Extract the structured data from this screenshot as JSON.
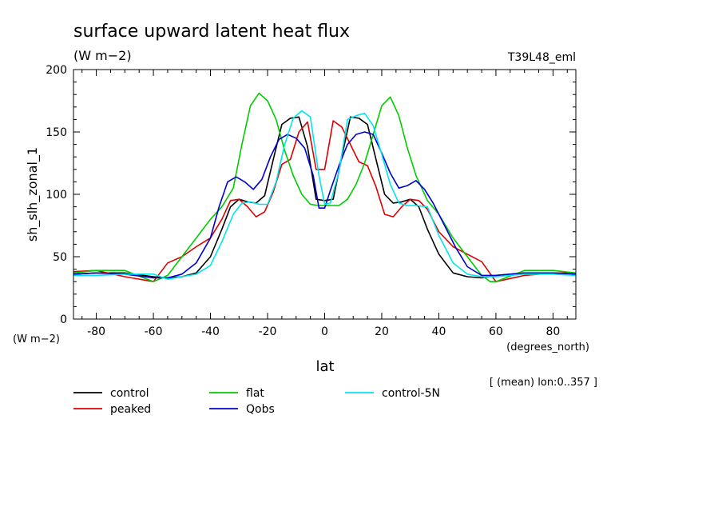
{
  "chart_data": {
    "type": "line",
    "title": "surface upward latent heat flux",
    "subtitle": "(W m−2)",
    "run_label": "T39L48_eml",
    "ylabel": "sh_slh_zonal_1",
    "yunit": "(W m−2)",
    "xlabel": "lat",
    "xunit": "(degrees_north)",
    "footnote": "[ (mean) lon:0..357 ]",
    "xlim": [
      -88,
      88
    ],
    "ylim": [
      0,
      200
    ],
    "x_ticks": [
      -80,
      -60,
      -40,
      -20,
      0,
      20,
      40,
      60,
      80
    ],
    "y_ticks": [
      0,
      50,
      100,
      150,
      200
    ],
    "grid": false,
    "legend_position": "bottom",
    "series": [
      {
        "name": "control",
        "color": "#000000",
        "x": [
          -88,
          -80,
          -70,
          -60,
          -55,
          -50,
          -45,
          -40,
          -36,
          -33,
          -30,
          -27,
          -24,
          -21,
          -18,
          -15,
          -12,
          -9,
          -6,
          -3,
          0,
          3,
          6,
          9,
          12,
          15,
          18,
          21,
          24,
          27,
          30,
          33,
          36,
          40,
          45,
          50,
          55,
          60,
          70,
          80,
          88
        ],
        "y": [
          36,
          37,
          37,
          34,
          33,
          34,
          37,
          50,
          72,
          90,
          96,
          94,
          93,
          99,
          128,
          156,
          161,
          162,
          138,
          96,
          95,
          96,
          130,
          162,
          161,
          156,
          128,
          100,
          93,
          94,
          96,
          90,
          72,
          52,
          37,
          34,
          33,
          35,
          37,
          37,
          36
        ]
      },
      {
        "name": "peaked",
        "color": "#dd0000",
        "x": [
          -88,
          -80,
          -70,
          -60,
          -55,
          -50,
          -45,
          -40,
          -36,
          -33,
          -30,
          -27,
          -24,
          -21,
          -18,
          -15,
          -12,
          -9,
          -6,
          -3,
          0,
          3,
          6,
          9,
          12,
          15,
          18,
          21,
          24,
          27,
          30,
          33,
          36,
          40,
          45,
          50,
          55,
          60,
          70,
          80,
          88
        ],
        "y": [
          38,
          39,
          34,
          30,
          45,
          50,
          58,
          65,
          80,
          95,
          96,
          90,
          82,
          86,
          102,
          124,
          128,
          150,
          158,
          120,
          120,
          159,
          154,
          140,
          126,
          123,
          106,
          84,
          82,
          90,
          96,
          95,
          88,
          70,
          58,
          52,
          46,
          30,
          35,
          37,
          37
        ]
      },
      {
        "name": "flat",
        "color": "#00cc00",
        "x": [
          -88,
          -80,
          -70,
          -60,
          -55,
          -50,
          -45,
          -40,
          -36,
          -32,
          -29,
          -26,
          -23,
          -20,
          -17,
          -14,
          -11,
          -8,
          -5,
          -2,
          0,
          2,
          5,
          8,
          11,
          14,
          17,
          20,
          23,
          26,
          29,
          32,
          36,
          40,
          45,
          50,
          55,
          58,
          60,
          70,
          80,
          88
        ],
        "y": [
          37,
          39,
          39,
          30,
          35,
          50,
          65,
          80,
          90,
          105,
          140,
          171,
          181,
          175,
          160,
          135,
          115,
          100,
          92,
          91,
          91,
          91,
          91,
          96,
          108,
          125,
          148,
          171,
          178,
          163,
          137,
          115,
          95,
          84,
          65,
          50,
          35,
          30,
          30,
          39,
          39,
          37
        ]
      },
      {
        "name": "Qobs",
        "color": "#0000cc",
        "x": [
          -88,
          -80,
          -70,
          -60,
          -55,
          -50,
          -45,
          -40,
          -37,
          -34,
          -31,
          -28,
          -25,
          -22,
          -19,
          -16,
          -13,
          -10,
          -7,
          -4,
          -2,
          0,
          2,
          5,
          8,
          11,
          14,
          17,
          20,
          23,
          26,
          29,
          32,
          35,
          38,
          42,
          46,
          50,
          55,
          60,
          70,
          80,
          88
        ],
        "y": [
          36,
          37,
          36,
          33,
          33,
          36,
          45,
          65,
          90,
          110,
          114,
          110,
          104,
          112,
          130,
          144,
          148,
          145,
          137,
          115,
          89,
          89,
          103,
          123,
          140,
          148,
          150,
          148,
          133,
          117,
          105,
          107,
          111,
          104,
          93,
          75,
          57,
          42,
          35,
          35,
          37,
          37,
          36
        ]
      },
      {
        "name": "control-5N",
        "color": "#00e5ee",
        "x": [
          -88,
          -80,
          -70,
          -60,
          -55,
          -50,
          -45,
          -40,
          -36,
          -32,
          -29,
          -26,
          -23,
          -20,
          -17,
          -14,
          -11,
          -8,
          -5,
          -2,
          0,
          2,
          5,
          8,
          11,
          14,
          17,
          20,
          23,
          26,
          29,
          32,
          36,
          40,
          45,
          50,
          55,
          60,
          70,
          80,
          88
        ],
        "y": [
          35,
          35,
          36,
          36,
          32,
          34,
          36,
          43,
          62,
          84,
          93,
          94,
          92,
          92,
          110,
          140,
          161,
          167,
          162,
          115,
          92,
          93,
          118,
          160,
          163,
          165,
          155,
          132,
          108,
          93,
          91,
          91,
          90,
          67,
          45,
          36,
          34,
          34,
          36,
          36,
          35
        ]
      }
    ]
  }
}
